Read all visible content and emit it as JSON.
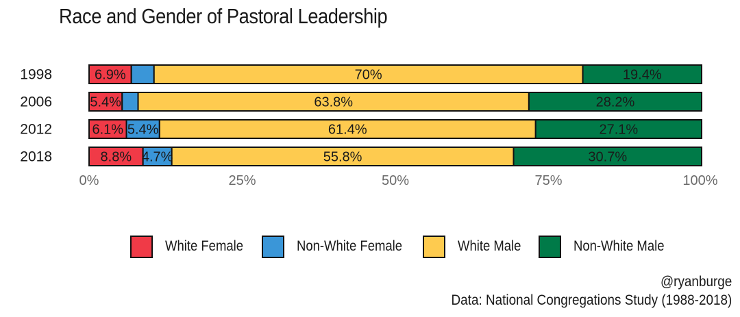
{
  "chart_data": {
    "type": "bar",
    "orientation": "horizontal",
    "stacked": true,
    "title": "Race and Gender of Pastoral Leadership",
    "categories": [
      "1998",
      "2006",
      "2012",
      "2018"
    ],
    "series": [
      {
        "name": "White Female",
        "color": "#f03a47",
        "values": [
          6.9,
          5.4,
          6.1,
          8.8
        ],
        "labels": [
          "6.9%",
          "5.4%",
          "6.1%",
          "8.8%"
        ]
      },
      {
        "name": "Non-White Female",
        "color": "#3a96d8",
        "values": [
          3.7,
          2.6,
          5.4,
          4.7
        ],
        "labels": [
          "",
          "",
          "5.4%",
          "4.7%"
        ]
      },
      {
        "name": "White Male",
        "color": "#fecb4f",
        "values": [
          70,
          63.8,
          61.4,
          55.8
        ],
        "labels": [
          "70%",
          "63.8%",
          "61.4%",
          "55.8%"
        ]
      },
      {
        "name": "Non-White Male",
        "color": "#007a48",
        "values": [
          19.4,
          28.2,
          27.1,
          30.7
        ],
        "labels": [
          "19.4%",
          "28.2%",
          "27.1%",
          "30.7%"
        ]
      }
    ],
    "xlim": [
      0,
      100
    ],
    "xticks": [
      "0%",
      "25%",
      "50%",
      "75%",
      "100%"
    ],
    "grid": false,
    "legend_position": "bottom"
  },
  "credit": {
    "handle": "@ryanburge",
    "source": "Data: National Congregations Study (1988-2018)"
  }
}
